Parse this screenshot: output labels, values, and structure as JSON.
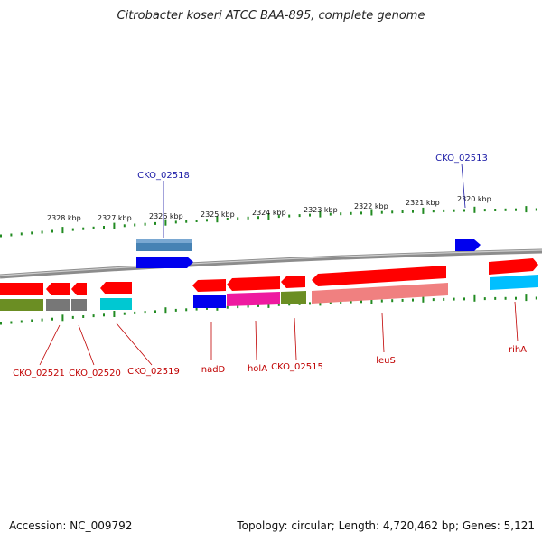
{
  "title": "Citrobacter koseri ATCC BAA-895, complete genome",
  "footer": {
    "accession": "Accession: NC_009792",
    "summary": "Topology: circular; Length: 4,720,462 bp; Genes: 5,121"
  },
  "ruler": {
    "labels": [
      "2328 kbp",
      "2327 kbp",
      "2326 kbp",
      "2325 kbp",
      "2324 kbp",
      "2323 kbp",
      "2322 kbp",
      "2321 kbp",
      "2320 kbp"
    ]
  },
  "gene_labels": {
    "top": [
      "CKO_02518",
      "CKO_02513"
    ],
    "bottom": [
      "CKO_02521",
      "CKO_02520",
      "CKO_02519",
      "nadD",
      "holA",
      "CKO_02515",
      "leuS",
      "rihA"
    ]
  },
  "colors": {
    "gene": "#ff0000",
    "cds_blue": "#0000ee",
    "steel": "#4682b4",
    "olive": "#6b8e23",
    "gray": "#777777",
    "cyan": "#00c8d2",
    "magenta": "#ee1aa0",
    "salmon": "#f08080",
    "tick": "#228b22",
    "backbone": "#8c8c8c"
  }
}
